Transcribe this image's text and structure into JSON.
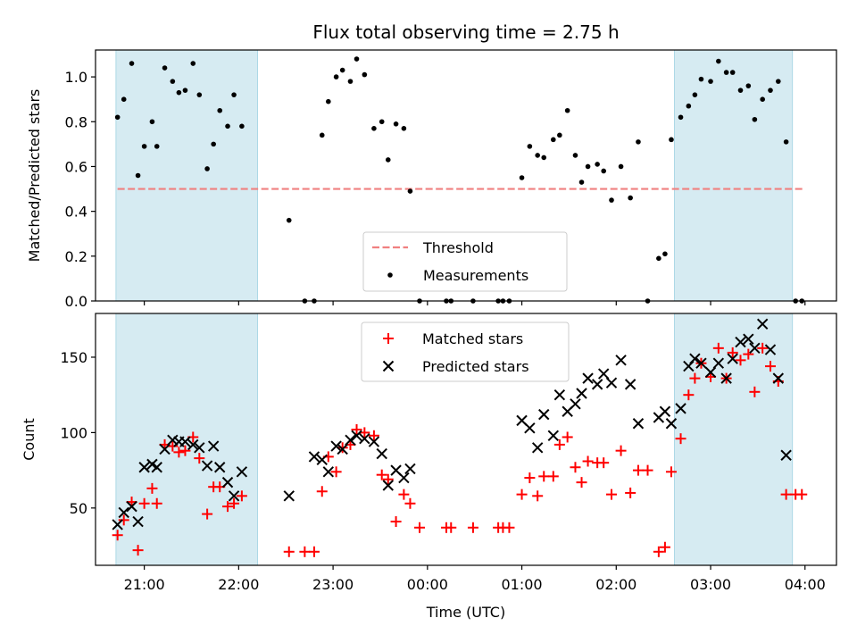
{
  "chart_data": [
    {
      "type": "scatter",
      "title": "Flux total observing time = 2.75 h",
      "ylabel": "Matched/Predicted stars",
      "xlabel": "",
      "ylim": [
        0,
        1.12
      ],
      "yticks": [
        "0.0",
        "0.2",
        "0.4",
        "0.6",
        "0.8",
        "1.0"
      ],
      "xlim": [
        "20:29",
        "04:20"
      ],
      "threshold": 0.5,
      "shaded_spans": [
        [
          "20:42",
          "22:12"
        ],
        [
          "02:37",
          "03:52"
        ]
      ],
      "legend_placement": "lower-center",
      "series": [
        {
          "name": "Threshold",
          "values": []
        },
        {
          "name": "Measurements",
          "points": [
            [
              "20:43",
              0.82
            ],
            [
              "20:47",
              0.9
            ],
            [
              "20:52",
              1.06
            ],
            [
              "20:56",
              0.56
            ],
            [
              "21:00",
              0.69
            ],
            [
              "21:05",
              0.8
            ],
            [
              "21:08",
              0.69
            ],
            [
              "21:13",
              1.04
            ],
            [
              "21:18",
              0.98
            ],
            [
              "21:22",
              0.93
            ],
            [
              "21:26",
              0.94
            ],
            [
              "21:31",
              1.06
            ],
            [
              "21:35",
              0.92
            ],
            [
              "21:40",
              0.59
            ],
            [
              "21:44",
              0.7
            ],
            [
              "21:48",
              0.85
            ],
            [
              "21:53",
              0.78
            ],
            [
              "21:57",
              0.92
            ],
            [
              "22:02",
              0.78
            ],
            [
              "22:32",
              0.36
            ],
            [
              "22:42",
              0.0
            ],
            [
              "22:48",
              0.0
            ],
            [
              "22:53",
              0.74
            ],
            [
              "22:57",
              0.89
            ],
            [
              "23:02",
              1.0
            ],
            [
              "23:06",
              1.03
            ],
            [
              "23:11",
              0.98
            ],
            [
              "23:15",
              1.08
            ],
            [
              "23:20",
              1.01
            ],
            [
              "23:26",
              0.77
            ],
            [
              "23:31",
              0.8
            ],
            [
              "23:35",
              0.63
            ],
            [
              "23:40",
              0.79
            ],
            [
              "23:45",
              0.77
            ],
            [
              "23:49",
              0.49
            ],
            [
              "23:55",
              0.0
            ],
            [
              "00:12",
              0.0
            ],
            [
              "00:15",
              0.0
            ],
            [
              "00:29",
              0.0
            ],
            [
              "00:45",
              0.0
            ],
            [
              "00:48",
              0.0
            ],
            [
              "00:52",
              0.0
            ],
            [
              "01:00",
              0.55
            ],
            [
              "01:05",
              0.69
            ],
            [
              "01:10",
              0.65
            ],
            [
              "01:14",
              0.64
            ],
            [
              "01:20",
              0.72
            ],
            [
              "01:24",
              0.74
            ],
            [
              "01:29",
              0.85
            ],
            [
              "01:34",
              0.65
            ],
            [
              "01:38",
              0.53
            ],
            [
              "01:42",
              0.6
            ],
            [
              "01:48",
              0.61
            ],
            [
              "01:52",
              0.58
            ],
            [
              "01:57",
              0.45
            ],
            [
              "02:03",
              0.6
            ],
            [
              "02:09",
              0.46
            ],
            [
              "02:14",
              0.71
            ],
            [
              "02:20",
              0.0
            ],
            [
              "02:27",
              0.19
            ],
            [
              "02:31",
              0.21
            ],
            [
              "02:35",
              0.72
            ],
            [
              "02:41",
              0.82
            ],
            [
              "02:46",
              0.87
            ],
            [
              "02:50",
              0.92
            ],
            [
              "02:54",
              0.99
            ],
            [
              "03:00",
              0.98
            ],
            [
              "03:05",
              1.07
            ],
            [
              "03:10",
              1.02
            ],
            [
              "03:14",
              1.02
            ],
            [
              "03:19",
              0.94
            ],
            [
              "03:24",
              0.96
            ],
            [
              "03:28",
              0.81
            ],
            [
              "03:33",
              0.9
            ],
            [
              "03:38",
              0.94
            ],
            [
              "03:43",
              0.98
            ],
            [
              "03:48",
              0.71
            ],
            [
              "03:54",
              0.0
            ],
            [
              "03:58",
              0.0
            ]
          ]
        }
      ]
    },
    {
      "type": "scatter",
      "title": "",
      "ylabel": "Count",
      "xlabel": "Time (UTC)",
      "ylim": [
        12,
        179
      ],
      "yticks": [
        "50",
        "100",
        "150"
      ],
      "xlim": [
        "20:29",
        "04:20"
      ],
      "xticks": [
        "21:00",
        "22:00",
        "23:00",
        "00:00",
        "01:00",
        "02:00",
        "03:00",
        "04:00"
      ],
      "shaded_spans": [
        [
          "20:42",
          "22:12"
        ],
        [
          "02:37",
          "03:52"
        ]
      ],
      "legend_placement": "upper-center",
      "series": [
        {
          "name": "Matched stars",
          "points": [
            [
              "20:43",
              32
            ],
            [
              "20:47",
              42
            ],
            [
              "20:52",
              54
            ],
            [
              "20:56",
              22
            ],
            [
              "21:00",
              53
            ],
            [
              "21:05",
              63
            ],
            [
              "21:08",
              53
            ],
            [
              "21:13",
              92
            ],
            [
              "21:18",
              91
            ],
            [
              "21:22",
              87
            ],
            [
              "21:26",
              88
            ],
            [
              "21:31",
              97
            ],
            [
              "21:35",
              83
            ],
            [
              "21:40",
              46
            ],
            [
              "21:44",
              64
            ],
            [
              "21:48",
              64
            ],
            [
              "21:53",
              51
            ],
            [
              "21:57",
              53
            ],
            [
              "22:02",
              58
            ],
            [
              "22:32",
              21
            ],
            [
              "22:42",
              21
            ],
            [
              "22:48",
              21
            ],
            [
              "22:53",
              61
            ],
            [
              "22:57",
              84
            ],
            [
              "23:02",
              74
            ],
            [
              "23:06",
              90
            ],
            [
              "23:11",
              92
            ],
            [
              "23:15",
              102
            ],
            [
              "23:20",
              100
            ],
            [
              "23:26",
              98
            ],
            [
              "23:31",
              72
            ],
            [
              "23:35",
              69
            ],
            [
              "23:40",
              41
            ],
            [
              "23:45",
              59
            ],
            [
              "23:49",
              53
            ],
            [
              "23:55",
              37
            ],
            [
              "00:12",
              37
            ],
            [
              "00:15",
              37
            ],
            [
              "00:29",
              37
            ],
            [
              "00:45",
              37
            ],
            [
              "00:48",
              37
            ],
            [
              "00:52",
              37
            ],
            [
              "01:00",
              59
            ],
            [
              "01:05",
              70
            ],
            [
              "01:10",
              58
            ],
            [
              "01:14",
              71
            ],
            [
              "01:20",
              71
            ],
            [
              "01:24",
              92
            ],
            [
              "01:29",
              97
            ],
            [
              "01:34",
              77
            ],
            [
              "01:38",
              67
            ],
            [
              "01:42",
              81
            ],
            [
              "01:48",
              80
            ],
            [
              "01:52",
              80
            ],
            [
              "01:57",
              59
            ],
            [
              "02:03",
              88
            ],
            [
              "02:09",
              60
            ],
            [
              "02:14",
              75
            ],
            [
              "02:20",
              75
            ],
            [
              "02:27",
              21
            ],
            [
              "02:31",
              24
            ],
            [
              "02:35",
              74
            ],
            [
              "02:41",
              96
            ],
            [
              "02:46",
              125
            ],
            [
              "02:50",
              136
            ],
            [
              "02:54",
              146
            ],
            [
              "03:00",
              137
            ],
            [
              "03:05",
              156
            ],
            [
              "03:10",
              136
            ],
            [
              "03:14",
              153
            ],
            [
              "03:19",
              148
            ],
            [
              "03:24",
              152
            ],
            [
              "03:28",
              127
            ],
            [
              "03:33",
              156
            ],
            [
              "03:38",
              144
            ],
            [
              "03:43",
              134
            ],
            [
              "03:48",
              59
            ],
            [
              "03:54",
              59
            ],
            [
              "03:58",
              59
            ]
          ]
        },
        {
          "name": "Predicted stars",
          "points": [
            [
              "20:43",
              39
            ],
            [
              "20:47",
              47
            ],
            [
              "20:52",
              51
            ],
            [
              "20:56",
              41
            ],
            [
              "21:00",
              77
            ],
            [
              "21:05",
              79
            ],
            [
              "21:08",
              77
            ],
            [
              "21:13",
              89
            ],
            [
              "21:18",
              95
            ],
            [
              "21:22",
              94
            ],
            [
              "21:26",
              94
            ],
            [
              "21:31",
              92
            ],
            [
              "21:35",
              90
            ],
            [
              "21:40",
              78
            ],
            [
              "21:44",
              91
            ],
            [
              "21:48",
              77
            ],
            [
              "21:53",
              67
            ],
            [
              "21:57",
              58
            ],
            [
              "22:02",
              74
            ],
            [
              "22:32",
              58
            ],
            [
              "22:48",
              84
            ],
            [
              "22:53",
              82
            ],
            [
              "22:57",
              74
            ],
            [
              "23:02",
              91
            ],
            [
              "23:06",
              89
            ],
            [
              "23:11",
              95
            ],
            [
              "23:15",
              98
            ],
            [
              "23:20",
              96
            ],
            [
              "23:26",
              94
            ],
            [
              "23:31",
              86
            ],
            [
              "23:35",
              65
            ],
            [
              "23:40",
              75
            ],
            [
              "23:45",
              70
            ],
            [
              "23:49",
              76
            ],
            [
              "01:00",
              108
            ],
            [
              "01:05",
              103
            ],
            [
              "01:10",
              90
            ],
            [
              "01:14",
              112
            ],
            [
              "01:20",
              98
            ],
            [
              "01:24",
              125
            ],
            [
              "01:29",
              114
            ],
            [
              "01:34",
              119
            ],
            [
              "01:38",
              126
            ],
            [
              "01:42",
              136
            ],
            [
              "01:48",
              132
            ],
            [
              "01:52",
              139
            ],
            [
              "01:57",
              133
            ],
            [
              "02:03",
              148
            ],
            [
              "02:09",
              132
            ],
            [
              "02:14",
              106
            ],
            [
              "02:27",
              110
            ],
            [
              "02:31",
              114
            ],
            [
              "02:35",
              106
            ],
            [
              "02:41",
              116
            ],
            [
              "02:46",
              144
            ],
            [
              "02:50",
              149
            ],
            [
              "02:54",
              146
            ],
            [
              "03:00",
              140
            ],
            [
              "03:05",
              146
            ],
            [
              "03:10",
              136
            ],
            [
              "03:14",
              149
            ],
            [
              "03:19",
              160
            ],
            [
              "03:24",
              162
            ],
            [
              "03:28",
              156
            ],
            [
              "03:33",
              172
            ],
            [
              "03:38",
              155
            ],
            [
              "03:43",
              136
            ],
            [
              "03:48",
              85
            ]
          ]
        }
      ]
    }
  ],
  "colors": {
    "shade": "#add8e6",
    "threshold": "#f08080",
    "measurement": "#000000",
    "matched": "#ff0000",
    "predicted": "#000000"
  }
}
